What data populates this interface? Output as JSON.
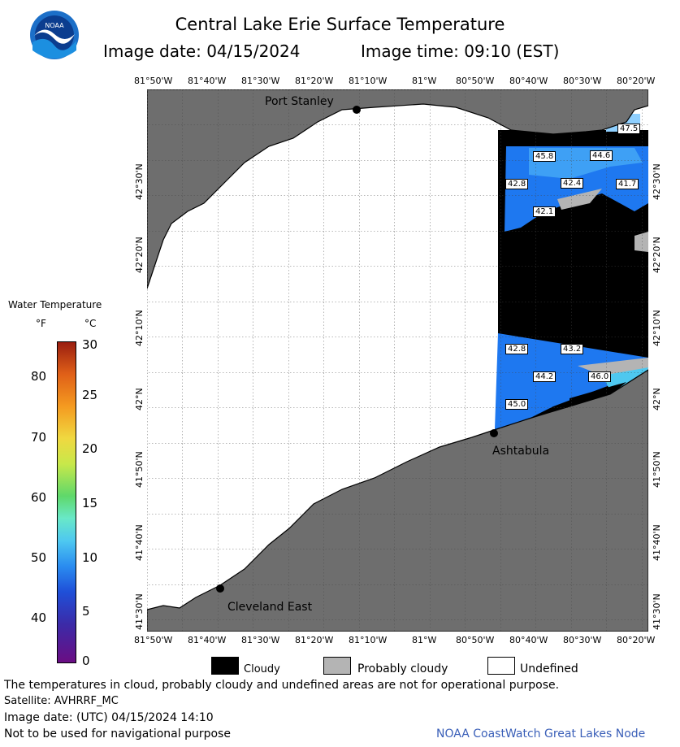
{
  "header": {
    "title": "Central Lake Erie Surface Temperature",
    "image_date": "Image date: 04/15/2024",
    "image_time": "Image time: 09:10 (EST)"
  },
  "axes": {
    "lon_labels": [
      "81°50'W",
      "81°40'W",
      "81°30'W",
      "81°20'W",
      "81°10'W",
      "81°W",
      "80°50'W",
      "80°40'W",
      "80°30'W",
      "80°20'W"
    ],
    "lat_labels": [
      "42°30'N",
      "42°20'N",
      "42°10'N",
      "42°N",
      "41°50'N",
      "41°40'N",
      "41°30'N"
    ]
  },
  "places": {
    "port_stanley": "Port Stanley",
    "ashtabula": "Ashtabula",
    "cleveland_east": "Cleveland East"
  },
  "temperature_labels": [
    "47.5",
    "45.8",
    "44.6",
    "42.8",
    "42.4",
    "41.7",
    "42.1",
    "42.8",
    "43.2",
    "44.2",
    "46.0",
    "45.0"
  ],
  "legend": {
    "title": "Water Temperature",
    "f_unit": "°F",
    "c_unit": "°C",
    "f_ticks": [
      "80",
      "70",
      "60",
      "50",
      "40"
    ],
    "c_ticks": [
      "30",
      "25",
      "20",
      "15",
      "10",
      "5",
      "0"
    ],
    "colors": [
      "#6a0d83",
      "#3b2ba8",
      "#1f4fd8",
      "#2a8cf0",
      "#4ec8f0",
      "#69e8c8",
      "#5fd86a",
      "#c8e84a",
      "#f0d840",
      "#f49a20",
      "#e06018",
      "#9a1e10"
    ]
  },
  "key": {
    "cloudy": "Cloudy",
    "probably_cloudy": "Probably cloudy",
    "undefined": "Undefined"
  },
  "footer": {
    "disclaimer": "The temperatures in cloud, probably cloudy and undefined areas are not for operational purpose.",
    "satellite": "Satellite: AVHRRF_MC",
    "utc_date": "Image date: (UTC) 04/15/2024  14:10",
    "nav_warning": "Not to be used for navigational purpose",
    "credit": "NOAA CoastWatch Great Lakes Node"
  },
  "logo_text": "NOAA",
  "colors": {
    "land": "#6e6e6e",
    "cloud": "#000000",
    "prob_cloud": "#b4b4b4",
    "undefined": "#ffffff",
    "water_blue": "#1e78f0",
    "credit": "#3a5fb8"
  }
}
